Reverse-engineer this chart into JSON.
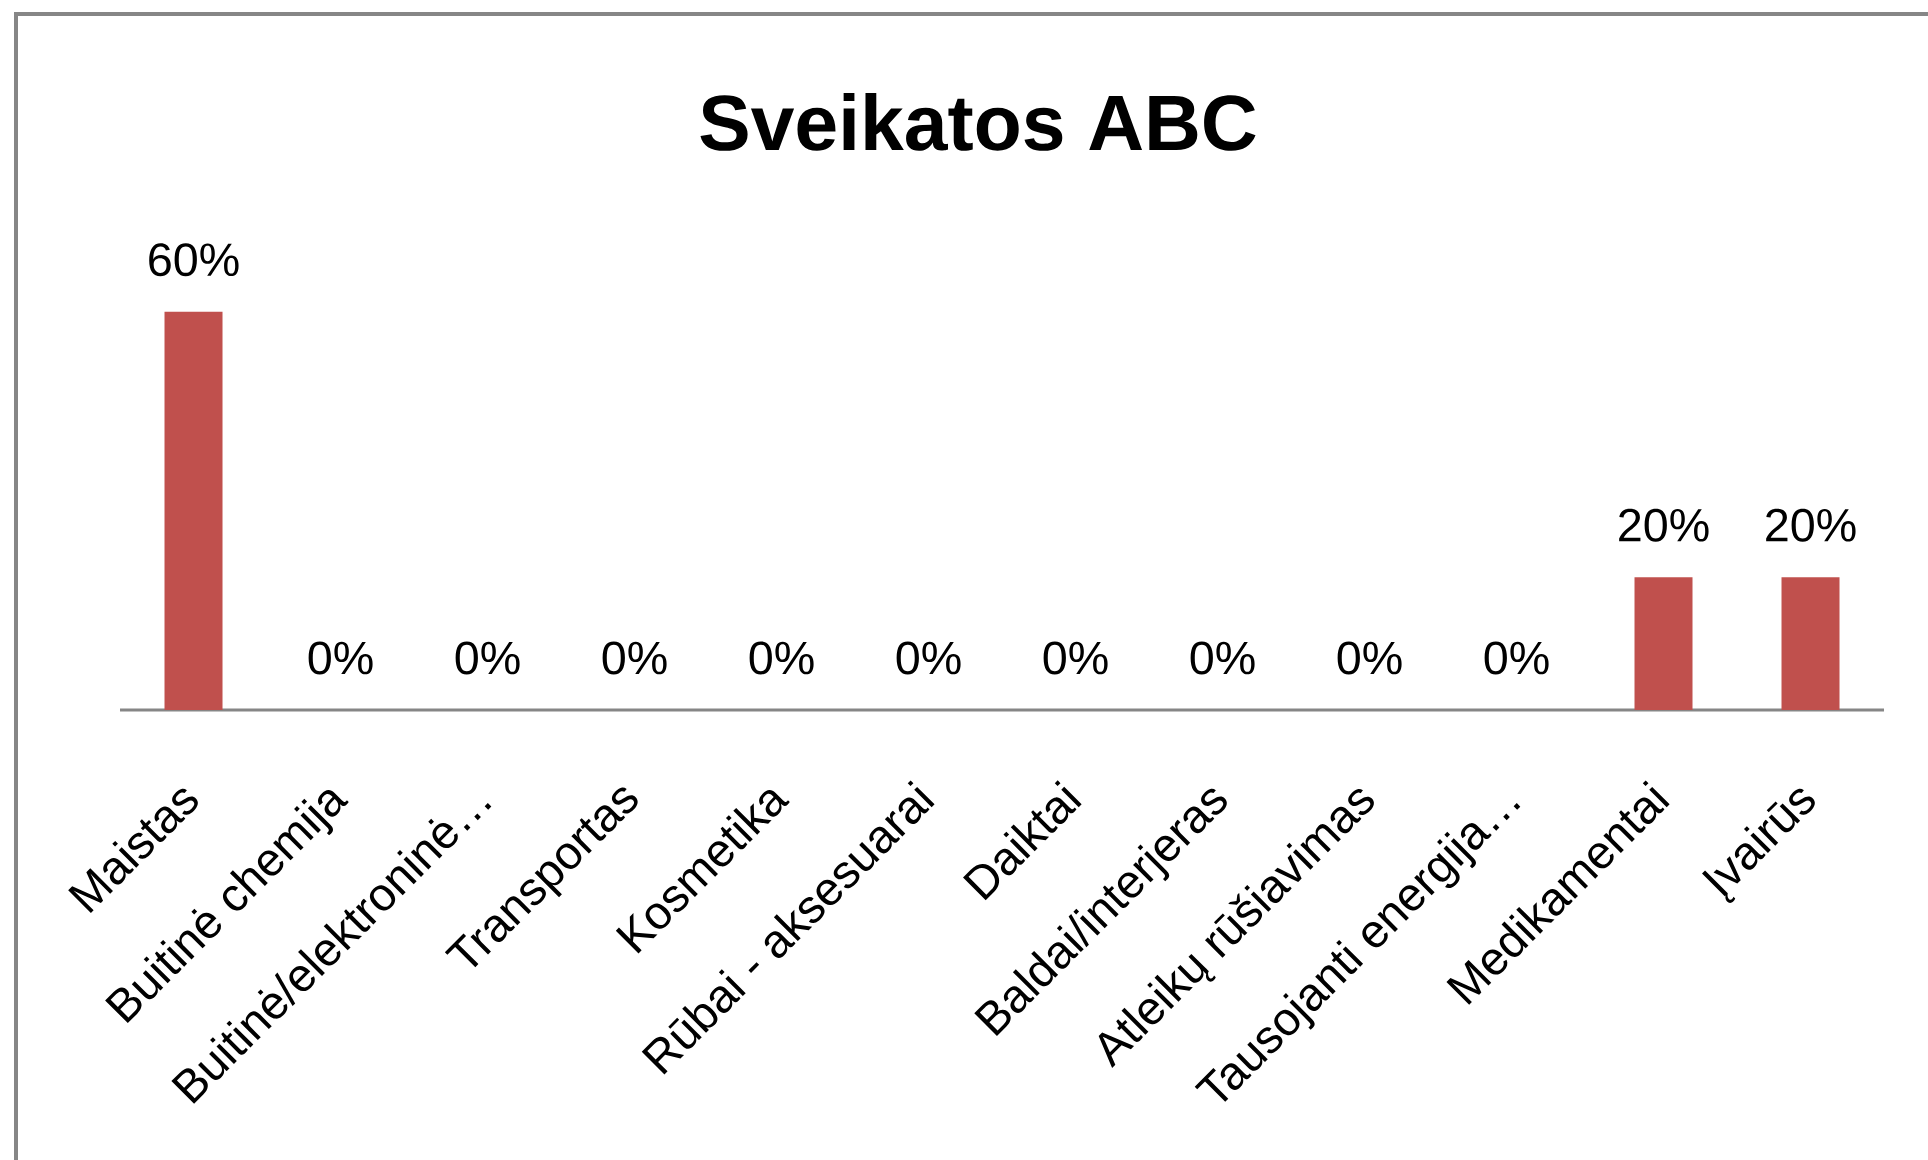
{
  "chart_data": {
    "type": "bar",
    "title": "Sveikatos ABC",
    "categories": [
      "Maistas",
      "Buitinė chemija",
      "Buitinė/elektroninė…",
      "Transportas",
      "Kosmetika",
      "Rūbai - aksesuarai",
      "Daiktai",
      "Baldai/interjeras",
      "Atleikų rūšiavimas",
      "Tausojanti energija…",
      "Medikamentai",
      "Įvairūs"
    ],
    "values": [
      60,
      0,
      0,
      0,
      0,
      0,
      0,
      0,
      0,
      0,
      20,
      20
    ],
    "value_labels": [
      "60%",
      "0%",
      "0%",
      "0%",
      "0%",
      "0%",
      "0%",
      "0%",
      "0%",
      "0%",
      "20%",
      "20%"
    ],
    "color": "#c0504d"
  }
}
